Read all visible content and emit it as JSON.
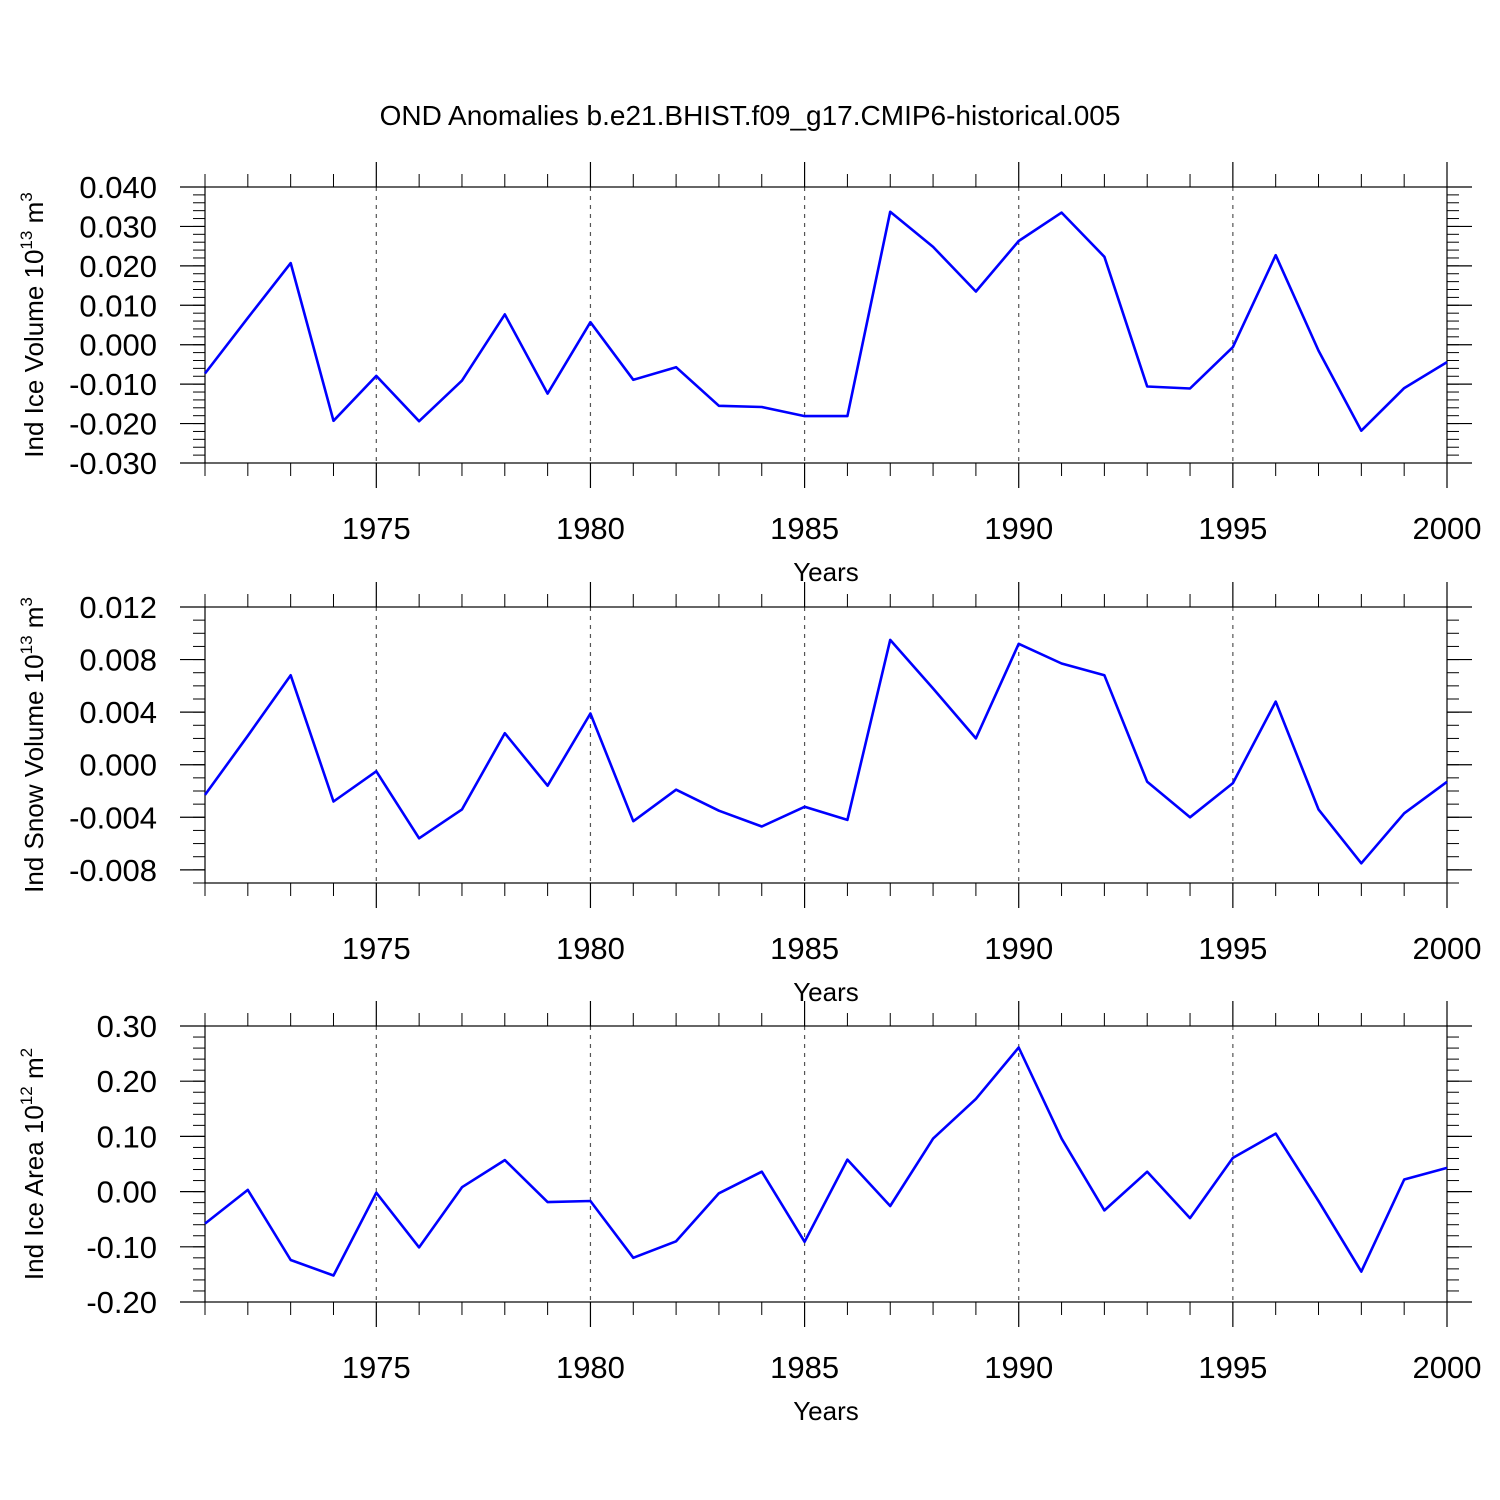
{
  "title": "OND Anomalies b.e21.BHIST.f09_g17.CMIP6-historical.005",
  "line_color": "#0000ff",
  "chart_data": [
    {
      "type": "line",
      "ylabel_main": "Ind Ice Volume 10",
      "ylabel_exp": "13",
      "ylabel_unit": "m",
      "ylabel_unit_exp": "3",
      "xlabel": "Years",
      "xlim": [
        1971,
        2000
      ],
      "ylim": [
        -0.03,
        0.04
      ],
      "yticks": [
        -0.03,
        -0.02,
        -0.01,
        0.0,
        0.01,
        0.02,
        0.03,
        0.04
      ],
      "ytick_labels": [
        "-0.030",
        "-0.020",
        "-0.010",
        "0.000",
        "0.010",
        "0.020",
        "0.030",
        "0.040"
      ],
      "yminor_step": 0.002,
      "xticks": [
        1975,
        1980,
        1985,
        1990,
        1995,
        2000
      ],
      "xtick_labels": [
        "1975",
        "1980",
        "1985",
        "1990",
        "1995",
        "2000"
      ],
      "x": [
        1971,
        1972,
        1973,
        1974,
        1975,
        1976,
        1977,
        1978,
        1979,
        1980,
        1981,
        1982,
        1983,
        1984,
        1985,
        1986,
        1987,
        1988,
        1989,
        1990,
        1991,
        1992,
        1993,
        1994,
        1995,
        1996,
        1997,
        1998,
        1999,
        2000
      ],
      "values": [
        -0.0073,
        0.0068,
        0.0207,
        -0.0193,
        -0.0079,
        -0.0194,
        -0.0091,
        0.0077,
        -0.0124,
        0.0057,
        -0.0089,
        -0.0057,
        -0.0155,
        -0.0158,
        -0.0181,
        -0.0181,
        0.0337,
        0.0248,
        0.0135,
        0.0263,
        0.0335,
        0.0223,
        -0.0106,
        -0.0111,
        -0.0006,
        0.0227,
        -0.0015,
        -0.0218,
        -0.011,
        -0.0044
      ]
    },
    {
      "type": "line",
      "ylabel_main": "Ind Snow Volume 10",
      "ylabel_exp": "13",
      "ylabel_unit": "m",
      "ylabel_unit_exp": "3",
      "xlabel": "Years",
      "xlim": [
        1971,
        2000
      ],
      "ylim": [
        -0.009,
        0.012
      ],
      "yticks": [
        -0.008,
        -0.004,
        0.0,
        0.004,
        0.008,
        0.012
      ],
      "ytick_labels": [
        "-0.008",
        "-0.004",
        "0.000",
        "0.004",
        "0.008",
        "0.012"
      ],
      "yminor_step": 0.001,
      "xticks": [
        1975,
        1980,
        1985,
        1990,
        1995,
        2000
      ],
      "xtick_labels": [
        "1975",
        "1980",
        "1985",
        "1990",
        "1995",
        "2000"
      ],
      "x": [
        1971,
        1972,
        1973,
        1974,
        1975,
        1976,
        1977,
        1978,
        1979,
        1980,
        1981,
        1982,
        1983,
        1984,
        1985,
        1986,
        1987,
        1988,
        1989,
        1990,
        1991,
        1992,
        1993,
        1994,
        1995,
        1996,
        1997,
        1998,
        1999,
        2000
      ],
      "values": [
        -0.0023,
        0.0022,
        0.0068,
        -0.0028,
        -0.0005,
        -0.0056,
        -0.0034,
        0.0024,
        -0.0016,
        0.0039,
        -0.0043,
        -0.0019,
        -0.0035,
        -0.0047,
        -0.0032,
        -0.0042,
        0.0095,
        0.0058,
        0.002,
        0.0092,
        0.0077,
        0.0068,
        -0.0013,
        -0.004,
        -0.0014,
        0.0048,
        -0.0034,
        -0.0075,
        -0.0037,
        -0.0013
      ]
    },
    {
      "type": "line",
      "ylabel_main": "Ind Ice Area 10",
      "ylabel_exp": "12",
      "ylabel_unit": "m",
      "ylabel_unit_exp": "2",
      "xlabel": "Years",
      "xlim": [
        1971,
        2000
      ],
      "ylim": [
        -0.2,
        0.3
      ],
      "yticks": [
        -0.2,
        -0.1,
        0.0,
        0.1,
        0.2,
        0.3
      ],
      "ytick_labels": [
        "-0.20",
        "-0.10",
        "0.00",
        "0.10",
        "0.20",
        "0.30"
      ],
      "yminor_step": 0.02,
      "xticks": [
        1975,
        1980,
        1985,
        1990,
        1995,
        2000
      ],
      "xtick_labels": [
        "1975",
        "1980",
        "1985",
        "1990",
        "1995",
        "2000"
      ],
      "x": [
        1971,
        1972,
        1973,
        1974,
        1975,
        1976,
        1977,
        1978,
        1979,
        1980,
        1981,
        1982,
        1983,
        1984,
        1985,
        1986,
        1987,
        1988,
        1989,
        1990,
        1991,
        1992,
        1993,
        1994,
        1995,
        1996,
        1997,
        1998,
        1999,
        2000
      ],
      "values": [
        -0.058,
        0.003,
        -0.124,
        -0.152,
        -0.002,
        -0.101,
        0.008,
        0.057,
        -0.019,
        -0.017,
        -0.12,
        -0.09,
        -0.003,
        0.036,
        -0.091,
        0.058,
        -0.026,
        0.096,
        0.168,
        0.261,
        0.096,
        -0.034,
        0.036,
        -0.048,
        0.061,
        0.105,
        -0.017,
        -0.145,
        0.022,
        0.043
      ]
    }
  ]
}
